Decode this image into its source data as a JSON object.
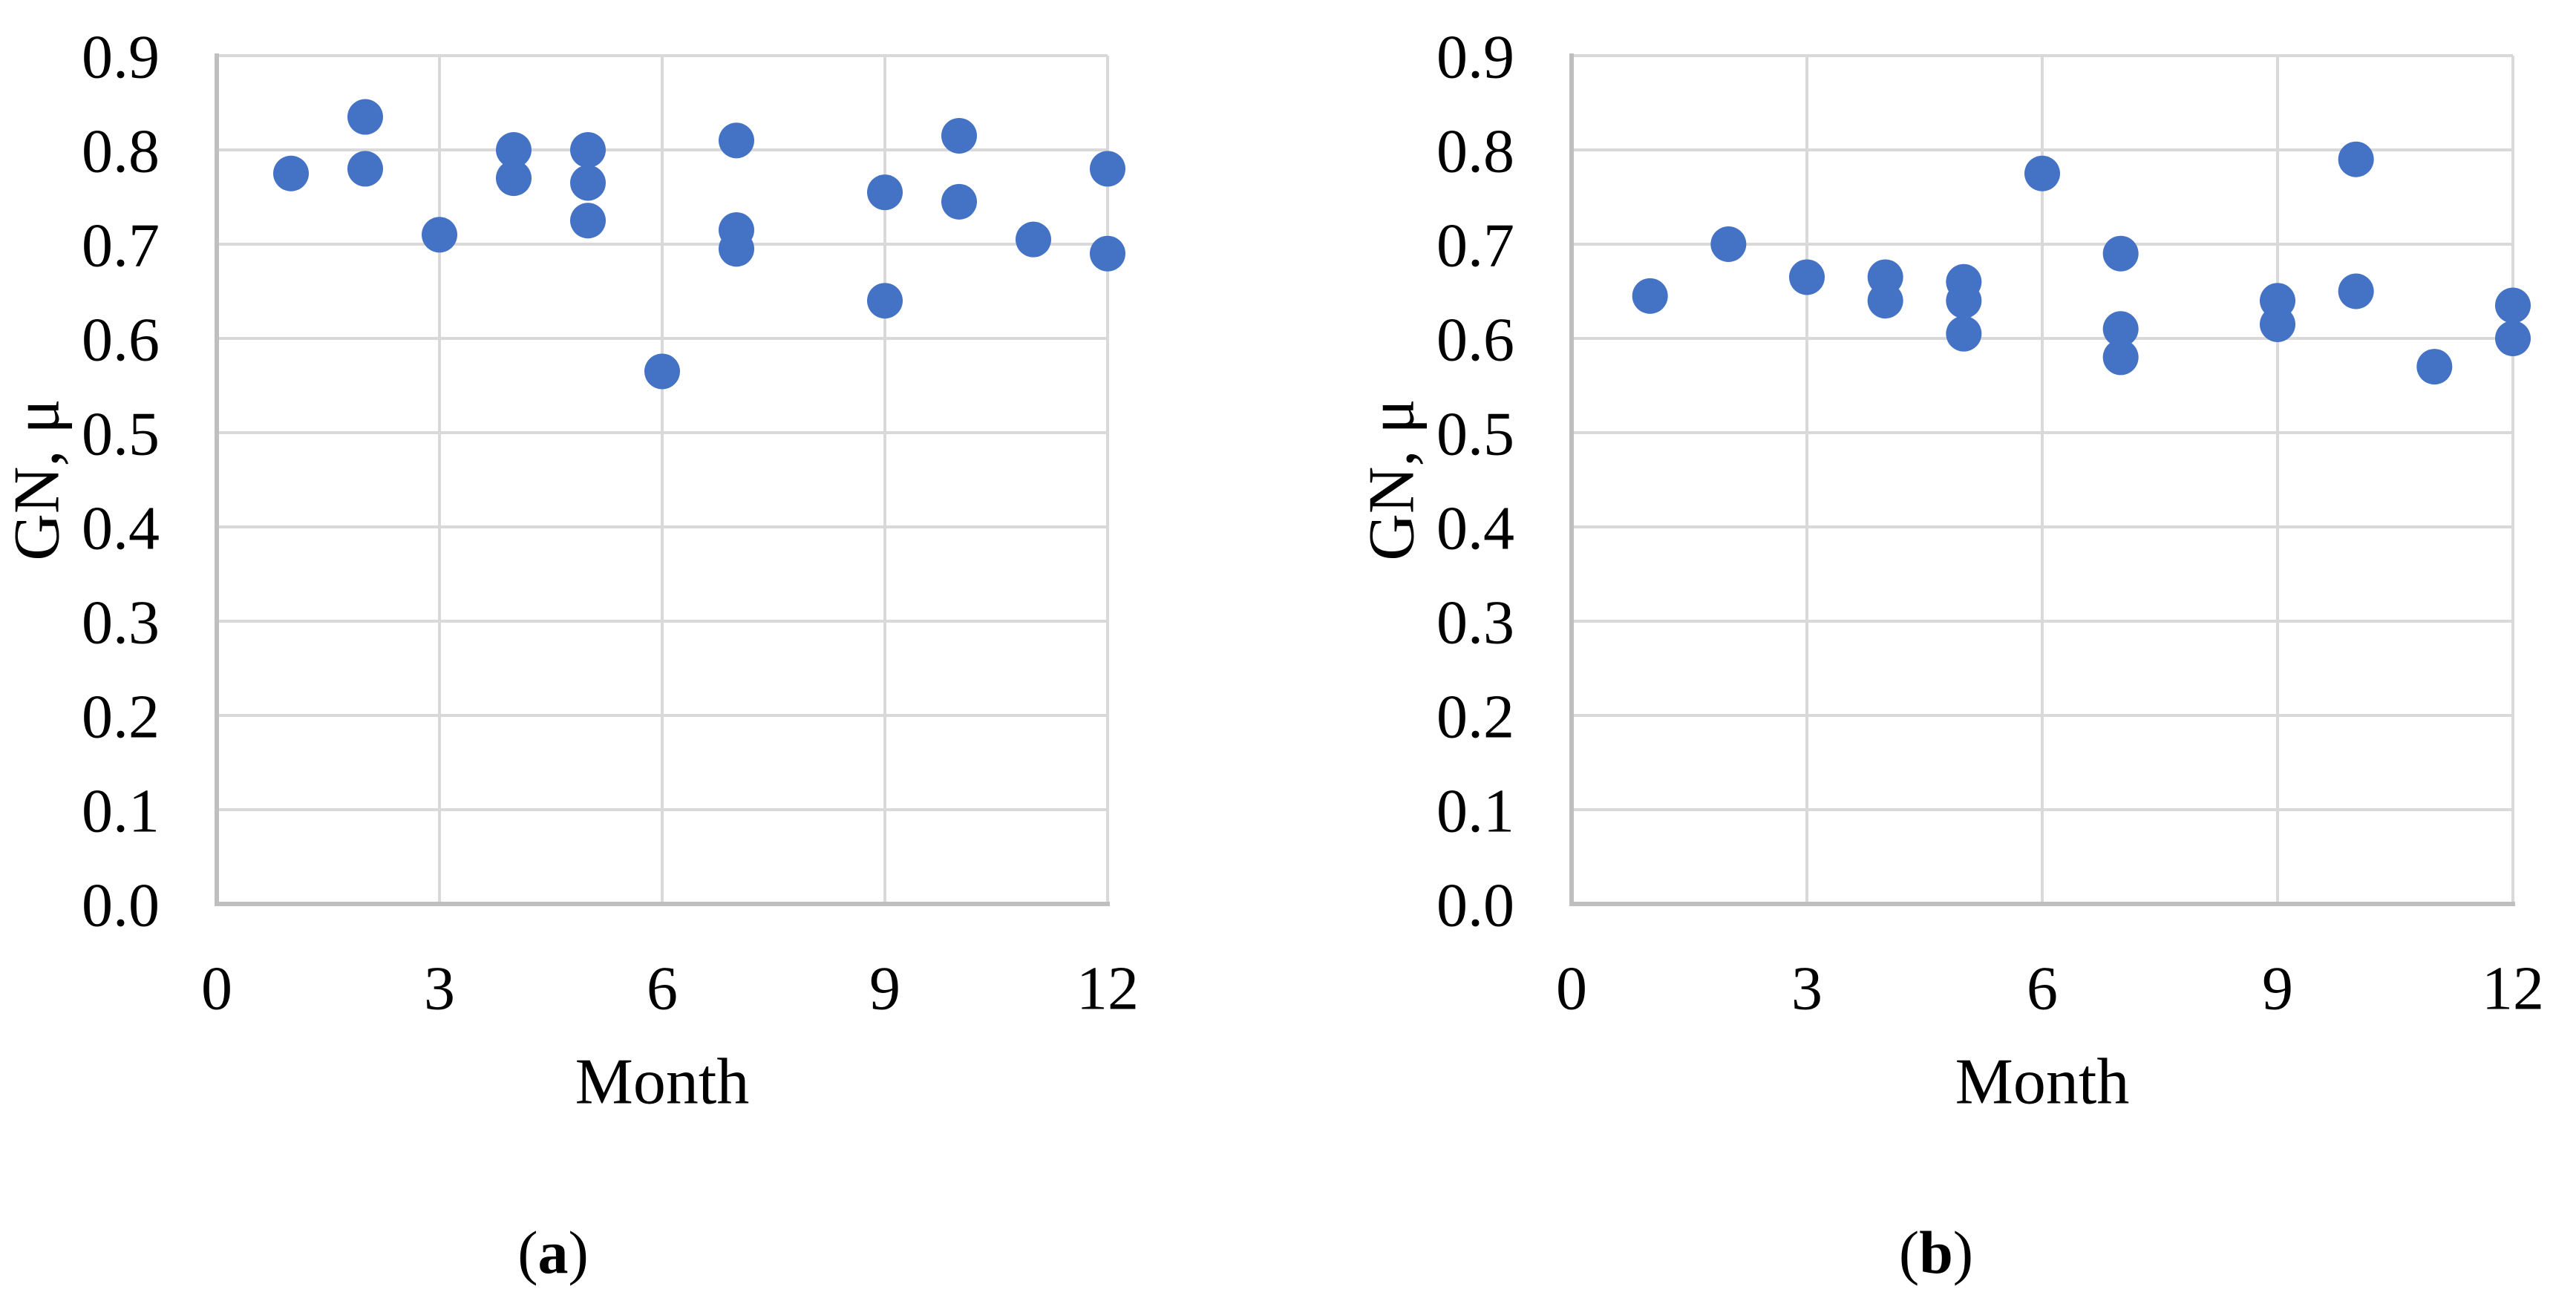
{
  "figure": {
    "background": "#ffffff",
    "marker_color": "#4472C4",
    "gridline_color": "#D9D9D9",
    "axis_line_color": "#BFBFBF",
    "text_color": "#000000"
  },
  "chart_data": [
    {
      "type": "scatter",
      "panel_open": "(",
      "panel_letter": "a",
      "panel_close": ")",
      "xlabel": "Month",
      "ylabel": "GN, μ",
      "xlim": [
        0,
        12
      ],
      "ylim": [
        0.0,
        0.9
      ],
      "x_ticks": [
        "0",
        "3",
        "6",
        "9",
        "12"
      ],
      "x_tick_values": [
        0,
        3,
        6,
        9,
        12
      ],
      "y_ticks": [
        "0.9",
        "0.8",
        "0.7",
        "0.6",
        "0.5",
        "0.4",
        "0.3",
        "0.2",
        "0.1",
        "0.0"
      ],
      "y_tick_values": [
        0.9,
        0.8,
        0.7,
        0.6,
        0.5,
        0.4,
        0.3,
        0.2,
        0.1,
        0.0
      ],
      "grid": true,
      "legend_position": "none",
      "marker_color": "#4472C4",
      "points": [
        {
          "x": 1,
          "y": 0.775
        },
        {
          "x": 2,
          "y": 0.835
        },
        {
          "x": 2,
          "y": 0.78
        },
        {
          "x": 3,
          "y": 0.71
        },
        {
          "x": 4,
          "y": 0.8
        },
        {
          "x": 4,
          "y": 0.77
        },
        {
          "x": 5,
          "y": 0.8
        },
        {
          "x": 5,
          "y": 0.765
        },
        {
          "x": 5,
          "y": 0.725
        },
        {
          "x": 6,
          "y": 0.565
        },
        {
          "x": 7,
          "y": 0.81
        },
        {
          "x": 7,
          "y": 0.715
        },
        {
          "x": 7,
          "y": 0.695
        },
        {
          "x": 9,
          "y": 0.755
        },
        {
          "x": 9,
          "y": 0.64
        },
        {
          "x": 10,
          "y": 0.815
        },
        {
          "x": 10,
          "y": 0.745
        },
        {
          "x": 11,
          "y": 0.705
        },
        {
          "x": 12,
          "y": 0.78
        },
        {
          "x": 12,
          "y": 0.69
        }
      ]
    },
    {
      "type": "scatter",
      "panel_open": "(",
      "panel_letter": "b",
      "panel_close": ")",
      "xlabel": "Month",
      "ylabel": "GN, μ",
      "xlim": [
        0,
        12
      ],
      "ylim": [
        0.0,
        0.9
      ],
      "x_ticks": [
        "0",
        "3",
        "6",
        "9",
        "12"
      ],
      "x_tick_values": [
        0,
        3,
        6,
        9,
        12
      ],
      "y_ticks": [
        "0.9",
        "0.8",
        "0.7",
        "0.6",
        "0.5",
        "0.4",
        "0.3",
        "0.2",
        "0.1",
        "0.0"
      ],
      "y_tick_values": [
        0.9,
        0.8,
        0.7,
        0.6,
        0.5,
        0.4,
        0.3,
        0.2,
        0.1,
        0.0
      ],
      "grid": true,
      "legend_position": "none",
      "marker_color": "#4472C4",
      "points": [
        {
          "x": 1,
          "y": 0.645
        },
        {
          "x": 2,
          "y": 0.7
        },
        {
          "x": 3,
          "y": 0.665
        },
        {
          "x": 4,
          "y": 0.665
        },
        {
          "x": 4,
          "y": 0.64
        },
        {
          "x": 5,
          "y": 0.66
        },
        {
          "x": 5,
          "y": 0.64
        },
        {
          "x": 5,
          "y": 0.605
        },
        {
          "x": 6,
          "y": 0.775
        },
        {
          "x": 7,
          "y": 0.69
        },
        {
          "x": 7,
          "y": 0.61
        },
        {
          "x": 7,
          "y": 0.58
        },
        {
          "x": 9,
          "y": 0.64
        },
        {
          "x": 9,
          "y": 0.615
        },
        {
          "x": 10,
          "y": 0.79
        },
        {
          "x": 10,
          "y": 0.65
        },
        {
          "x": 11,
          "y": 0.57
        },
        {
          "x": 12,
          "y": 0.635
        },
        {
          "x": 12,
          "y": 0.6
        }
      ]
    }
  ]
}
